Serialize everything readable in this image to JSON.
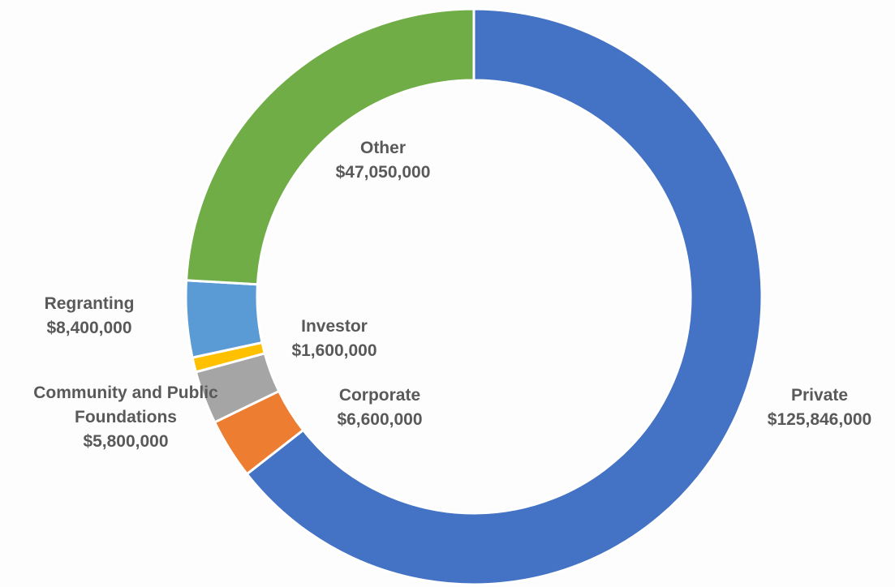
{
  "chart_data": {
    "type": "donut",
    "categories": [
      "Private",
      "Corporate",
      "Community and Public Foundations",
      "Investor",
      "Regranting",
      "Other"
    ],
    "values": [
      125846000,
      6600000,
      5800000,
      1600000,
      8400000,
      47050000
    ],
    "value_labels": [
      "$125,846,000",
      "$6,600,000",
      "$5,800,000",
      "$1,600,000",
      "$8,400,000",
      "$47,050,000"
    ],
    "colors": [
      "#4472c4",
      "#ed7d31",
      "#a5a5a5",
      "#ffc000",
      "#5b9bd5",
      "#70ad47"
    ]
  }
}
